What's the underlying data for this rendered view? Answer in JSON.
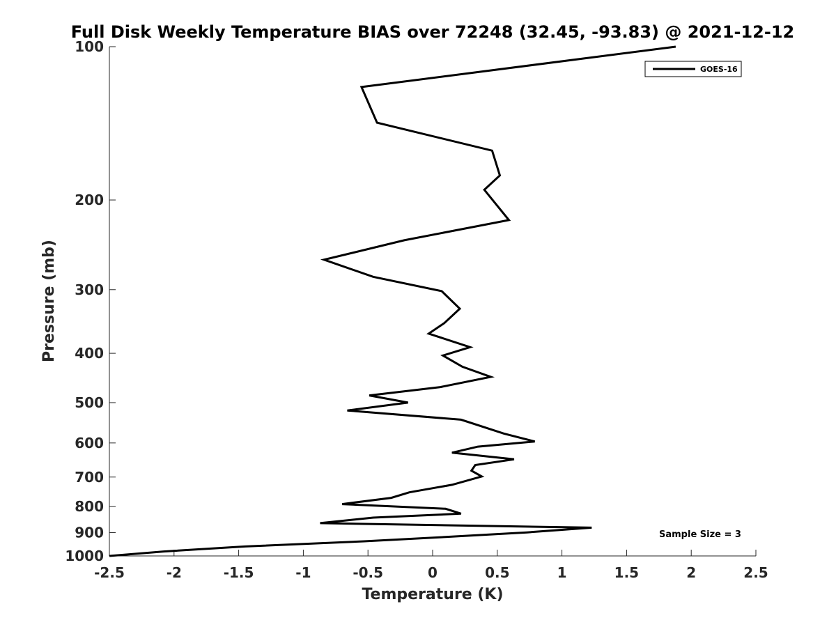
{
  "chart_data": {
    "type": "line",
    "title": "Full Disk Weekly Temperature BIAS over 72248 (32.45, -93.83) @ 2021-12-12",
    "xlabel": "Temperature (K)",
    "ylabel": "Pressure (mb)",
    "xlim": [
      -2.5,
      2.5
    ],
    "ylim": [
      100,
      1000
    ],
    "y_scale": "log",
    "y_reversed": true,
    "x_ticks": [
      "-2.5",
      "-2",
      "-1.5",
      "-1",
      "-0.5",
      "0",
      "0.5",
      "1",
      "1.5",
      "2",
      "2.5"
    ],
    "x_tick_values": [
      -2.5,
      -2,
      -1.5,
      -1,
      -0.5,
      0,
      0.5,
      1,
      1.5,
      2,
      2.5
    ],
    "y_ticks": [
      "100",
      "200",
      "300",
      "400",
      "500",
      "600",
      "700",
      "800",
      "900",
      "1000"
    ],
    "y_tick_values": [
      100,
      200,
      300,
      400,
      500,
      600,
      700,
      800,
      900,
      1000
    ],
    "grid": false,
    "legend_position": "top-right",
    "series": [
      {
        "name": "GOES-16",
        "color": "#000000",
        "points": [
          [
            1.88,
            100
          ],
          [
            -0.55,
            120
          ],
          [
            -0.43,
            141
          ],
          [
            0.46,
            160
          ],
          [
            0.52,
            179
          ],
          [
            0.4,
            191
          ],
          [
            0.59,
            219
          ],
          [
            -0.22,
            240
          ],
          [
            -0.84,
            262
          ],
          [
            -0.46,
            283
          ],
          [
            0.07,
            302
          ],
          [
            0.21,
            327
          ],
          [
            0.09,
            349
          ],
          [
            -0.03,
            366
          ],
          [
            0.29,
            389
          ],
          [
            0.08,
            404
          ],
          [
            0.23,
            425
          ],
          [
            0.45,
            445
          ],
          [
            0.06,
            466
          ],
          [
            -0.49,
            484
          ],
          [
            -0.19,
            500
          ],
          [
            -0.66,
            518
          ],
          [
            0.22,
            540
          ],
          [
            0.55,
            575
          ],
          [
            0.79,
            596
          ],
          [
            0.35,
            610
          ],
          [
            0.15,
            627
          ],
          [
            0.63,
            646
          ],
          [
            0.33,
            663
          ],
          [
            0.3,
            680
          ],
          [
            0.38,
            698
          ],
          [
            0.15,
            725
          ],
          [
            -0.18,
            750
          ],
          [
            -0.32,
            769
          ],
          [
            -0.7,
            791
          ],
          [
            0.1,
            808
          ],
          [
            0.22,
            826
          ],
          [
            -0.46,
            841
          ],
          [
            -0.87,
            862
          ],
          [
            1.23,
            880
          ],
          [
            0.73,
            899
          ],
          [
            0.1,
            918
          ],
          [
            -0.53,
            936
          ],
          [
            -1.45,
            958
          ],
          [
            -2.08,
            980
          ],
          [
            -2.5,
            1000
          ]
        ]
      }
    ],
    "annotation": "Sample Size = 3"
  }
}
